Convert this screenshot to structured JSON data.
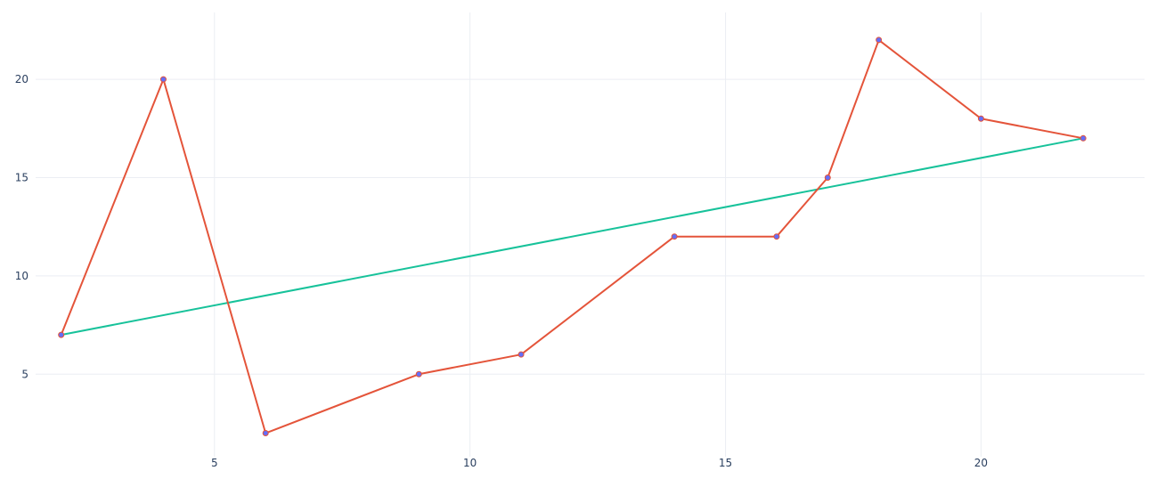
{
  "chart_data": {
    "type": "line",
    "title": "",
    "xlabel": "",
    "ylabel": "",
    "xlim": [
      1.5,
      23.2
    ],
    "ylim": [
      0.8,
      23.4
    ],
    "xticks": [
      5,
      10,
      15,
      20
    ],
    "yticks": [
      5,
      10,
      15,
      20
    ],
    "grid": true,
    "series": [
      {
        "color": "#e4543a",
        "marker_color": "#636efa",
        "x": [
          2,
          4,
          6,
          9,
          11,
          14,
          16,
          17,
          18,
          20,
          22
        ],
        "y": [
          7,
          20,
          2,
          5,
          6,
          12,
          12,
          15,
          22,
          18,
          17
        ]
      },
      {
        "color": "#17c29a",
        "x": [
          2,
          22
        ],
        "y": [
          7,
          17
        ]
      }
    ]
  }
}
